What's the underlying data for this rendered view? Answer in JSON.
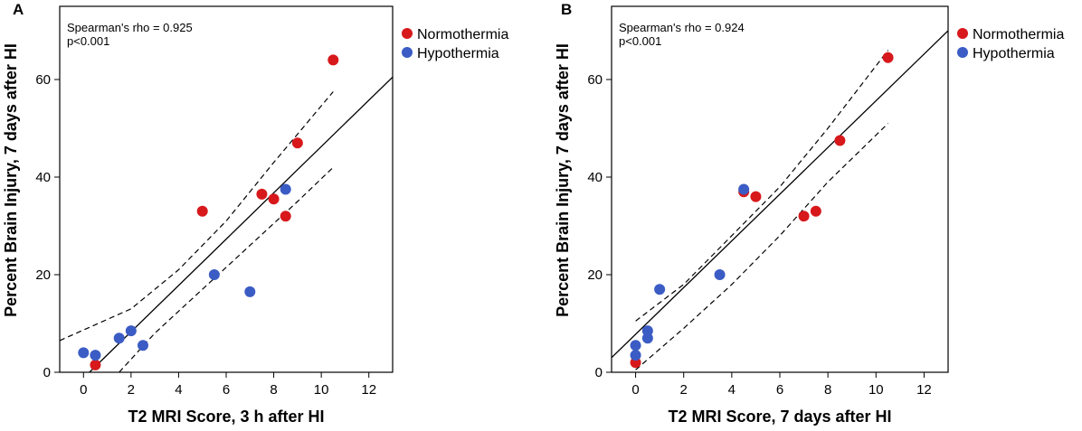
{
  "chart_data": [
    {
      "type": "scatter",
      "panel_label": "A",
      "xlabel": "T2 MRI Score, 3 h after HI",
      "ylabel": "Percent Brain Injury, 7 days after HI",
      "xlim": [
        -1,
        13
      ],
      "ylim": [
        0,
        75
      ],
      "xticks": [
        0,
        2,
        4,
        6,
        8,
        10,
        12
      ],
      "yticks": [
        0,
        20,
        40,
        60
      ],
      "x_tick_labels": [
        "0",
        "2",
        "4",
        "6",
        "8",
        "10",
        "12"
      ],
      "y_tick_labels": [
        "0",
        "20",
        "40",
        "60"
      ],
      "annotation": [
        "Spearman's rho = 0.925",
        "p<0.001"
      ],
      "legend": [
        "Normothermia",
        "Hypothermia"
      ],
      "series": [
        {
          "name": "Normothermia",
          "color": "#d7191c",
          "points": [
            [
              0.5,
              1.5
            ],
            [
              5,
              33
            ],
            [
              7.5,
              36.5
            ],
            [
              8,
              35.5
            ],
            [
              8.5,
              32
            ],
            [
              9,
              47
            ],
            [
              10.5,
              64
            ]
          ]
        },
        {
          "name": "Hypothermia",
          "color": "#3b5cc4",
          "points": [
            [
              0,
              4
            ],
            [
              0.5,
              3.5
            ],
            [
              1.5,
              7
            ],
            [
              2,
              8.5
            ],
            [
              2.5,
              5.5
            ],
            [
              5.5,
              20
            ],
            [
              7,
              16.5
            ],
            [
              8.5,
              37.5
            ]
          ]
        }
      ],
      "fit_line": [
        [
          0.25,
          0
        ],
        [
          13,
          60.5
        ]
      ],
      "ci_upper": [
        [
          -1,
          6.5
        ],
        [
          2,
          13
        ],
        [
          4,
          21
        ],
        [
          6,
          31
        ],
        [
          8,
          43
        ],
        [
          10.5,
          57.5
        ]
      ],
      "ci_lower": [
        [
          1.5,
          0
        ],
        [
          3,
          8
        ],
        [
          5,
          17
        ],
        [
          7,
          26
        ],
        [
          9,
          35
        ],
        [
          10.5,
          42
        ]
      ]
    },
    {
      "type": "scatter",
      "panel_label": "B",
      "xlabel": "T2 MRI Score, 7 days after HI",
      "ylabel": "Percent Brain Injury, 7 days after HI",
      "xlim": [
        -1,
        13
      ],
      "ylim": [
        0,
        75
      ],
      "xticks": [
        0,
        2,
        4,
        6,
        8,
        10,
        12
      ],
      "yticks": [
        0,
        20,
        40,
        60
      ],
      "x_tick_labels": [
        "0",
        "2",
        "4",
        "6",
        "8",
        "10",
        "12"
      ],
      "y_tick_labels": [
        "0",
        "20",
        "40",
        "60"
      ],
      "annotation": [
        "Spearman's rho = 0.924",
        "p<0.001"
      ],
      "legend": [
        "Normothermia",
        "Hypothermia"
      ],
      "series": [
        {
          "name": "Normothermia",
          "color": "#d7191c",
          "points": [
            [
              0,
              2
            ],
            [
              4.5,
              37
            ],
            [
              5,
              36
            ],
            [
              7,
              32
            ],
            [
              7.5,
              33
            ],
            [
              8.5,
              47.5
            ],
            [
              10.5,
              64.5
            ]
          ]
        },
        {
          "name": "Hypothermia",
          "color": "#3b5cc4",
          "points": [
            [
              0,
              3.5
            ],
            [
              0,
              5.5
            ],
            [
              0.5,
              7
            ],
            [
              0.5,
              8.5
            ],
            [
              1,
              17
            ],
            [
              3.5,
              20
            ],
            [
              4.5,
              37.5
            ]
          ]
        }
      ],
      "fit_line": [
        [
          -1,
          3
        ],
        [
          13,
          70
        ]
      ],
      "ci_upper": [
        [
          0,
          10.5
        ],
        [
          2,
          18
        ],
        [
          4,
          28
        ],
        [
          6,
          38
        ],
        [
          8,
          50
        ],
        [
          10.5,
          66
        ]
      ],
      "ci_lower": [
        [
          0,
          0.5
        ],
        [
          2,
          9
        ],
        [
          4,
          18
        ],
        [
          6,
          28
        ],
        [
          8,
          39
        ],
        [
          10.5,
          51
        ]
      ]
    }
  ]
}
